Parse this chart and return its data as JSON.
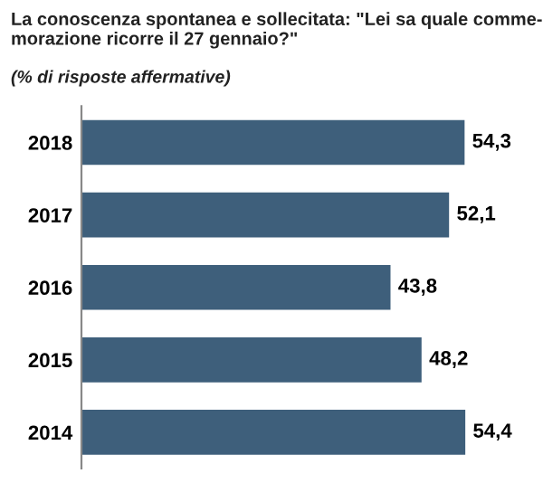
{
  "chart_data": {
    "type": "bar",
    "orientation": "horizontal",
    "title": "La conoscenza spontanea e sollecitata: \"Lei sa quale comme-\nmorazione ricorre il 27 gennaio?\"",
    "subtitle": "(% di risposte affermative)",
    "categories": [
      "2018",
      "2017",
      "2016",
      "2015",
      "2014"
    ],
    "values": [
      54.3,
      52.1,
      43.8,
      48.2,
      54.4
    ],
    "value_labels": [
      "54,3",
      "52,1",
      "43,8",
      "48,2",
      "54,4"
    ],
    "color": "#3e5f7b",
    "grid": false,
    "legend": false
  }
}
